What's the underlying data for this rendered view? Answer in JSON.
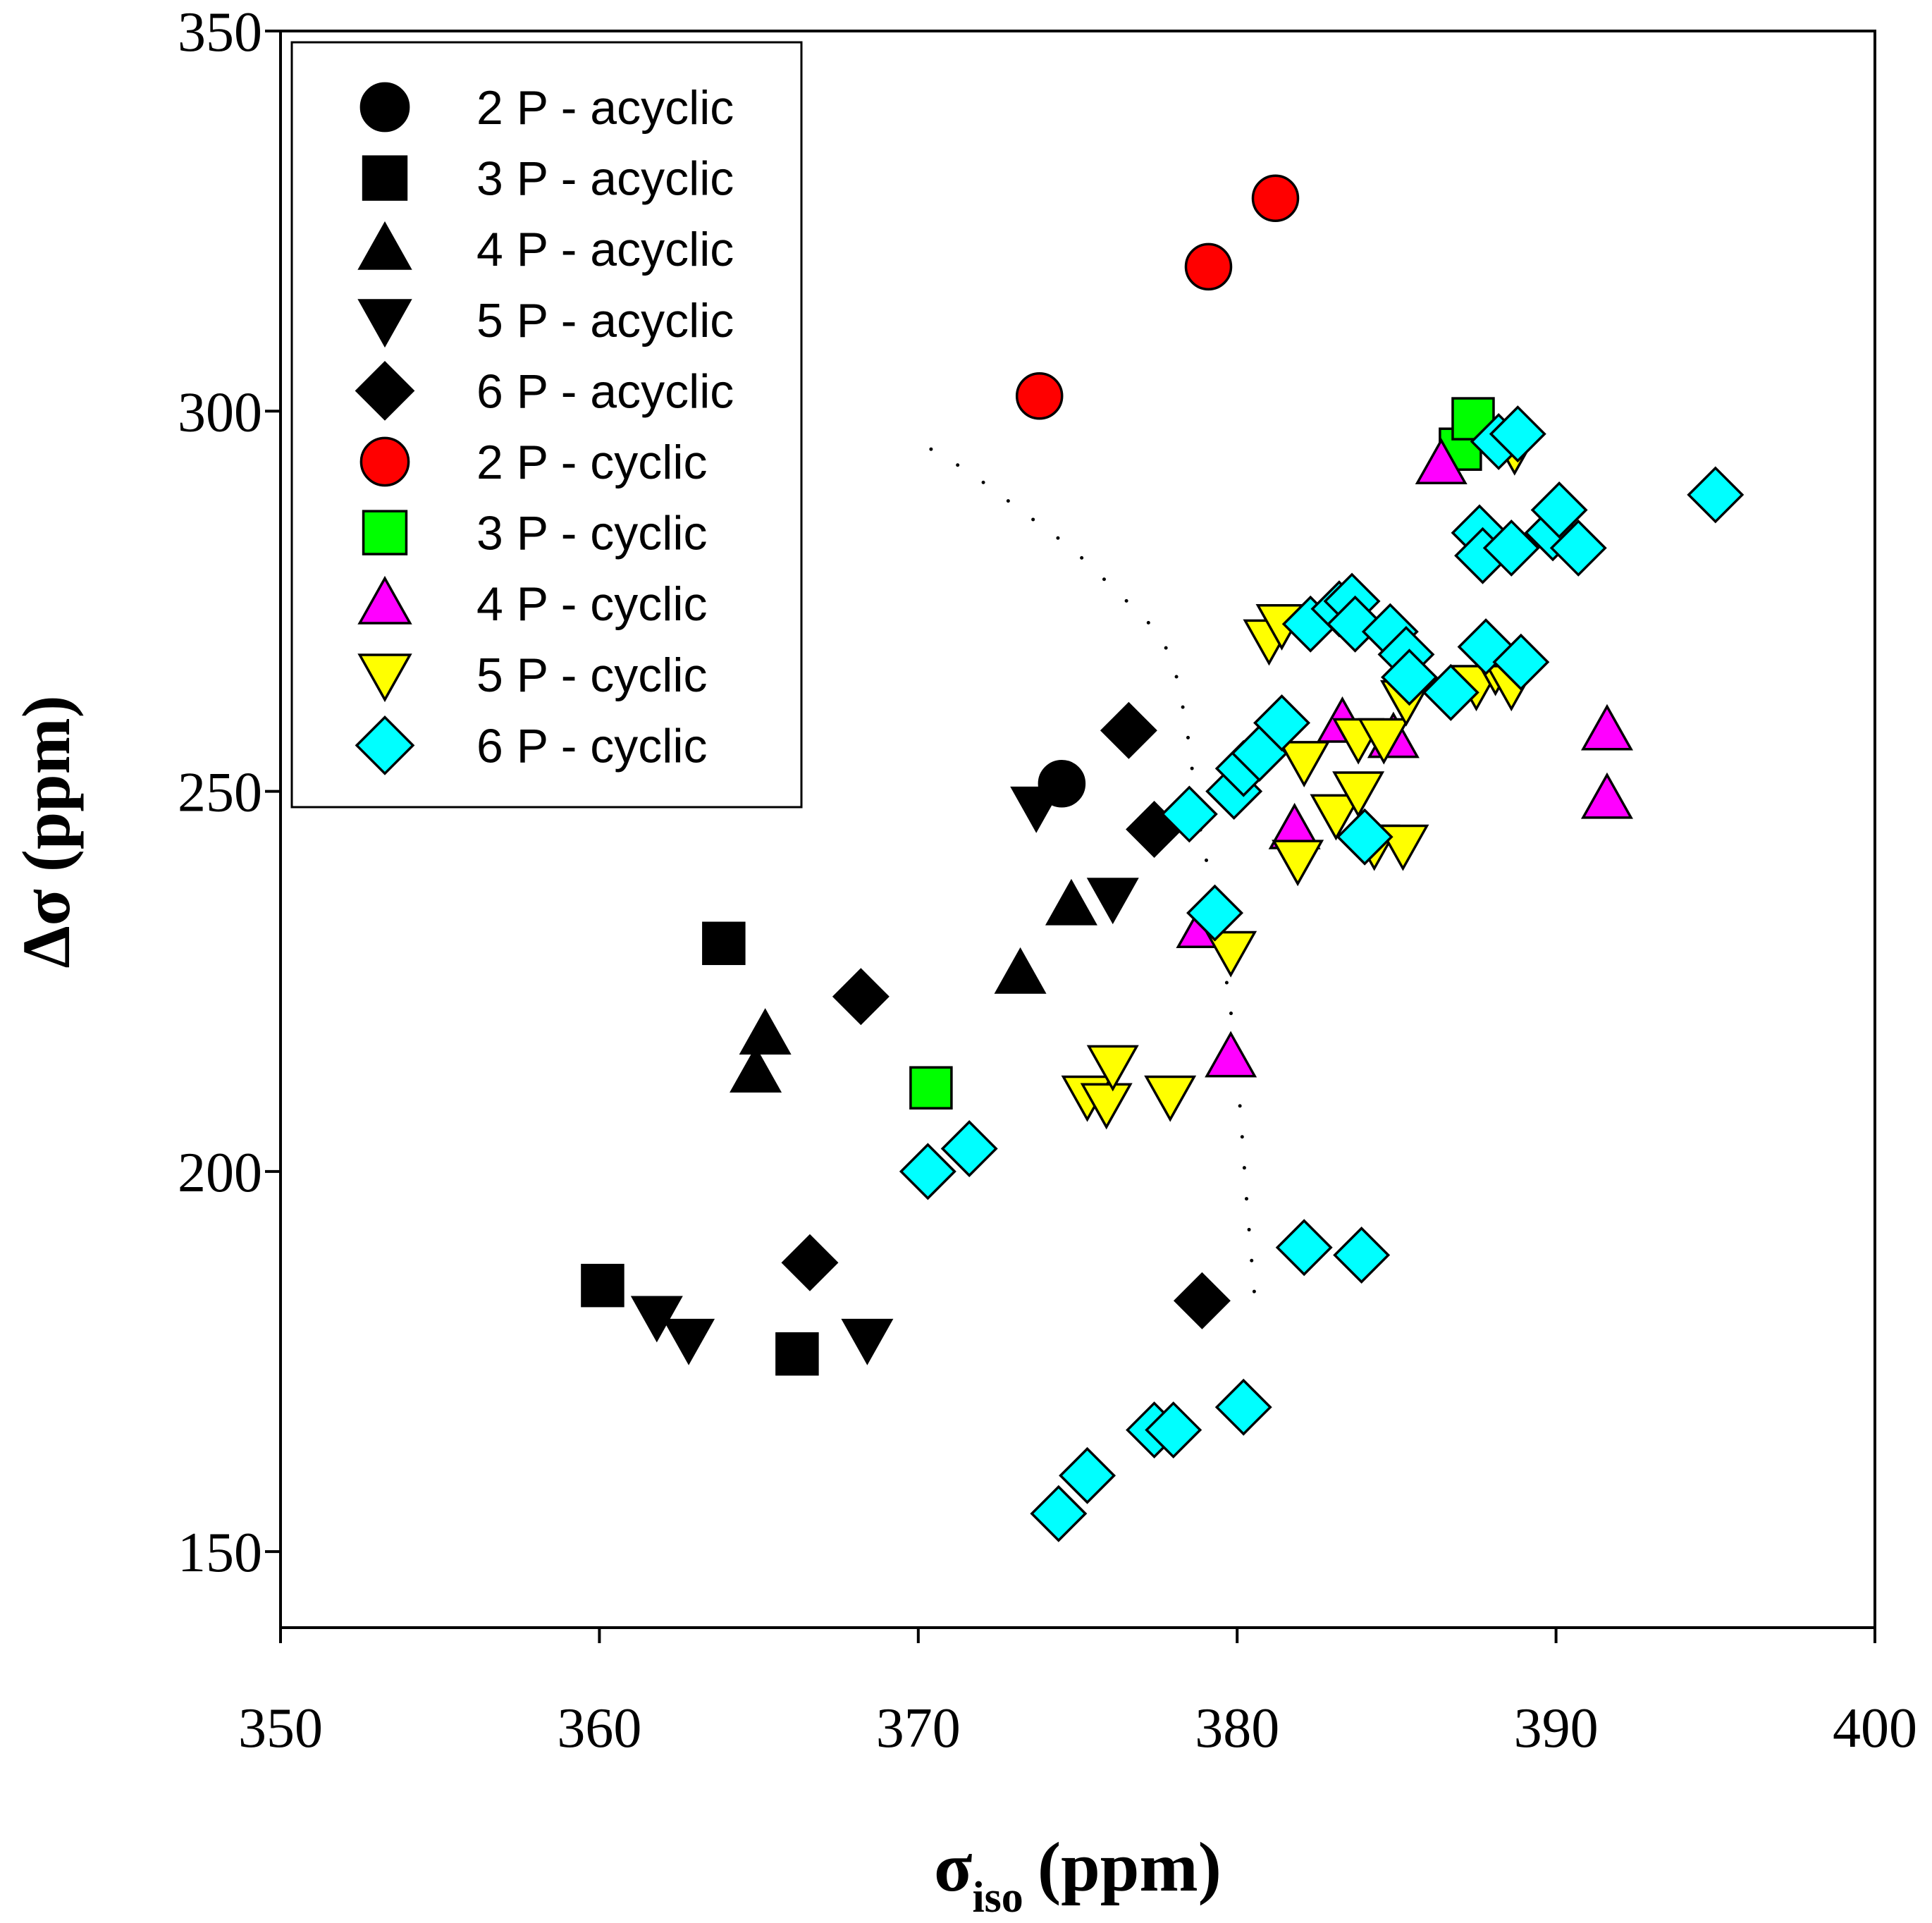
{
  "chart_data": {
    "type": "scatter",
    "title": "",
    "xlabel": "σ",
    "xlabel_sub": "iso",
    "xlabel_unit": "(ppm)",
    "ylabel": "Δσ (ppm)",
    "xlim": [
      350,
      400
    ],
    "ylim": [
      140,
      350
    ],
    "xticks": [
      350,
      360,
      370,
      380,
      390,
      400
    ],
    "yticks": [
      150,
      200,
      250,
      300,
      350
    ],
    "grid": false,
    "legend_position": "top-left",
    "series": [
      {
        "name": "2 P - acyclic",
        "marker": "circle",
        "fill": "#000000",
        "points": [
          [
            374.5,
            251
          ]
        ]
      },
      {
        "name": "3 P - acyclic",
        "marker": "square",
        "fill": "#000000",
        "points": [
          [
            363.9,
            230
          ],
          [
            360.1,
            185
          ],
          [
            366.2,
            176
          ]
        ]
      },
      {
        "name": "4 P - acyclic",
        "marker": "triangle-up",
        "fill": "#000000",
        "points": [
          [
            365.2,
            218
          ],
          [
            364.9,
            213
          ],
          [
            373.2,
            226
          ],
          [
            374.8,
            235
          ]
        ]
      },
      {
        "name": "5 P - acyclic",
        "marker": "triangle-down",
        "fill": "#000000",
        "points": [
          [
            361.8,
            181
          ],
          [
            362.8,
            178
          ],
          [
            368.4,
            178
          ],
          [
            373.7,
            248
          ],
          [
            376.1,
            236
          ]
        ]
      },
      {
        "name": "6 P - acyclic",
        "marker": "diamond",
        "fill": "#000000",
        "points": [
          [
            366.6,
            188
          ],
          [
            368.2,
            223
          ],
          [
            376.6,
            258
          ],
          [
            377.4,
            245
          ],
          [
            378.9,
            183
          ]
        ]
      },
      {
        "name": "2 P - cyclic",
        "marker": "circle",
        "fill": "#ff0000",
        "points": [
          [
            373.8,
            302
          ],
          [
            379.1,
            319
          ],
          [
            381.2,
            328
          ]
        ]
      },
      {
        "name": "3 P - cyclic",
        "marker": "square",
        "fill": "#00ff00",
        "points": [
          [
            370.4,
            211
          ],
          [
            387.0,
            295
          ],
          [
            387.4,
            299
          ]
        ]
      },
      {
        "name": "4 P - cyclic",
        "marker": "triangle-up",
        "fill": "#ff00ff",
        "points": [
          [
            386.4,
            293
          ],
          [
            391.6,
            258
          ],
          [
            391.6,
            249
          ],
          [
            378.9,
            232
          ],
          [
            379.8,
            215
          ],
          [
            381.8,
            245
          ],
          [
            383.3,
            259
          ],
          [
            384.9,
            257
          ]
        ]
      },
      {
        "name": "5 P - cyclic",
        "marker": "triangle-down",
        "fill": "#ffff00",
        "points": [
          [
            375.3,
            210
          ],
          [
            375.9,
            209
          ],
          [
            376.1,
            214
          ],
          [
            377.9,
            210
          ],
          [
            379.8,
            229
          ],
          [
            381.0,
            270
          ],
          [
            381.4,
            272
          ],
          [
            381.9,
            241
          ],
          [
            382.1,
            254
          ],
          [
            383.1,
            247
          ],
          [
            383.8,
            250
          ],
          [
            383.8,
            257
          ],
          [
            384.3,
            243
          ],
          [
            384.6,
            257
          ],
          [
            385.2,
            243
          ],
          [
            385.3,
            262
          ],
          [
            387.5,
            264
          ],
          [
            388.1,
            266
          ],
          [
            388.6,
            264
          ],
          [
            388.7,
            295
          ]
        ]
      },
      {
        "name": "6 P - cyclic",
        "marker": "diamond",
        "fill": "#00ffff",
        "points": [
          [
            370.3,
            200
          ],
          [
            371.6,
            203
          ],
          [
            374.4,
            155
          ],
          [
            375.3,
            160
          ],
          [
            377.4,
            166
          ],
          [
            378.0,
            166
          ],
          [
            380.2,
            169
          ],
          [
            382.1,
            190
          ],
          [
            383.9,
            189
          ],
          [
            378.5,
            247
          ],
          [
            379.3,
            234
          ],
          [
            379.9,
            250
          ],
          [
            380.2,
            253
          ],
          [
            380.7,
            255
          ],
          [
            381.4,
            259
          ],
          [
            382.3,
            272
          ],
          [
            383.2,
            274
          ],
          [
            383.6,
            275
          ],
          [
            383.7,
            272
          ],
          [
            384.0,
            244
          ],
          [
            384.8,
            271
          ],
          [
            385.3,
            268
          ],
          [
            385.4,
            265
          ],
          [
            386.7,
            263
          ],
          [
            387.6,
            284
          ],
          [
            387.7,
            281
          ],
          [
            387.8,
            269
          ],
          [
            388.2,
            296
          ],
          [
            388.6,
            282
          ],
          [
            388.8,
            297
          ],
          [
            388.9,
            267
          ],
          [
            389.9,
            284
          ],
          [
            390.1,
            287
          ],
          [
            390.7,
            282
          ],
          [
            395.0,
            289
          ]
        ]
      }
    ],
    "annotations": [
      {
        "type": "dotted-line",
        "points": [
          [
            370.4,
            295
          ],
          [
            371.6,
            292
          ],
          [
            373.2,
            287
          ],
          [
            374.8,
            282
          ],
          [
            376.3,
            276
          ],
          [
            377.5,
            271
          ],
          [
            378.0,
            267
          ],
          [
            378.4,
            259
          ],
          [
            378.8,
            246
          ],
          [
            379.4,
            233
          ],
          [
            379.9,
            218
          ],
          [
            380.1,
            208
          ],
          [
            380.3,
            196
          ],
          [
            380.5,
            186
          ],
          [
            380.6,
            181
          ]
        ]
      }
    ]
  }
}
